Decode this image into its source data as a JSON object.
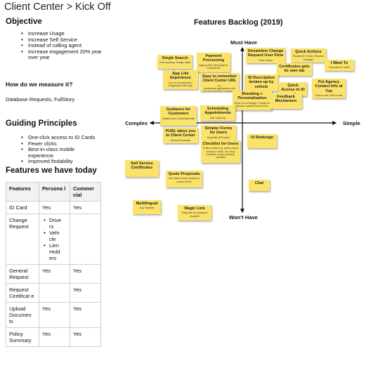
{
  "page": {
    "title": "Client Center > Kick Off"
  },
  "objective": {
    "heading": "Objective",
    "items": [
      "Increase Usage",
      "Increase Self Service",
      "Instead of calling agent",
      "Increase engagement 20% year over year"
    ]
  },
  "measure": {
    "heading": "How do we measure it?",
    "text": "Database Requests, FullStory"
  },
  "principles": {
    "heading": "Guiding Principles",
    "items": [
      "One-click access to ID Cards",
      "Fewer clicks",
      "Best-in-class mobile experience",
      "Improved findability"
    ]
  },
  "features_today": {
    "heading": "Features we have today",
    "headers": [
      "Features",
      "Persona l",
      "Commer cial"
    ],
    "rows": [
      {
        "feature": "ID Card",
        "personal": "Yes",
        "commercial": "Yes"
      },
      {
        "feature": "Change Request",
        "personal_list": [
          "Drive rs",
          "Vehi cle",
          "Lien Hold ers"
        ],
        "commercial": ""
      },
      {
        "feature": "General Request",
        "personal": "Yes",
        "commercial": "Yes"
      },
      {
        "feature": "Request Certificat e",
        "personal": "",
        "commercial": "Yes"
      },
      {
        "feature": "Upload Documen ts",
        "personal": "Yes",
        "commercial": "Yes"
      },
      {
        "feature": "Policy Summary",
        "personal": "Yes",
        "commercial": "Yes"
      }
    ]
  },
  "backlog": {
    "title": "Features Backlog (2019)",
    "axes": {
      "top": "Must Have",
      "bottom": "Won't Have",
      "left": "Complex",
      "right": "Simple"
    },
    "notes": [
      {
        "title": "Single Search",
        "sub": "Find anything. Google Style"
      },
      {
        "title": "Payment Processing",
        "sub": "Agency Bill, Especially for Commercial"
      },
      {
        "title": "Streamline Change Request User Flow",
        "sub": "Fewer Steps"
      },
      {
        "title": "Quick Actions",
        "sub": "Request ID Cards, Request Changes"
      },
      {
        "title": "I Want To",
        "sub": "Generate ID cards"
      },
      {
        "title": "App Like Experience",
        "sub": "Icon on homescreen, Progressive Web App"
      },
      {
        "title": "Easy to remember Client Center URL",
        "sub": "e.g. smartsmart.agentname.com For new / existing customers"
      },
      {
        "title": "Certificates gets its own tab",
        "sub": ""
      },
      {
        "title": "ID Description broken up by vehicle",
        "sub": ""
      },
      {
        "title": "Quick Access to ID cards",
        "sub": ""
      },
      {
        "title": "Put Agency Contact Info at Top",
        "sub": "Click to call, Click to text"
      },
      {
        "title": "Branding + Personalization",
        "sub": "Spice up homepage. Thanks for being a customer since 20xx"
      },
      {
        "title": "Feedback Mechanism",
        "sub": ""
      },
      {
        "title": "Guidance for Customers",
        "sub": "Guided tours Contextual help"
      },
      {
        "title": "Scheduling Appointments",
        "sub": "Like Calend.ly"
      },
      {
        "title": "PURL takes you to Client Center",
        "sub": "Annual Renewals"
      },
      {
        "title": "Simpler Forms for Users",
        "sub": "Simplified API forms"
      },
      {
        "title": "Checklist for Users",
        "sub": "To file a claim (e.g. police report, photos of crash, etc.) Buy checklist, home inventory checklist"
      },
      {
        "title": "UI Redesign",
        "sub": ""
      },
      {
        "title": "Self Service Certificates",
        "sub": ""
      },
      {
        "title": "Quote Proposals",
        "sub": "Via Client Center instead of custom PDFs"
      },
      {
        "title": "Chat",
        "sub": ""
      },
      {
        "title": "Multilingual",
        "sub": "E.g. Spanish"
      },
      {
        "title": "Magic Link",
        "sub": "Slag (Hit) No password required"
      }
    ]
  }
}
